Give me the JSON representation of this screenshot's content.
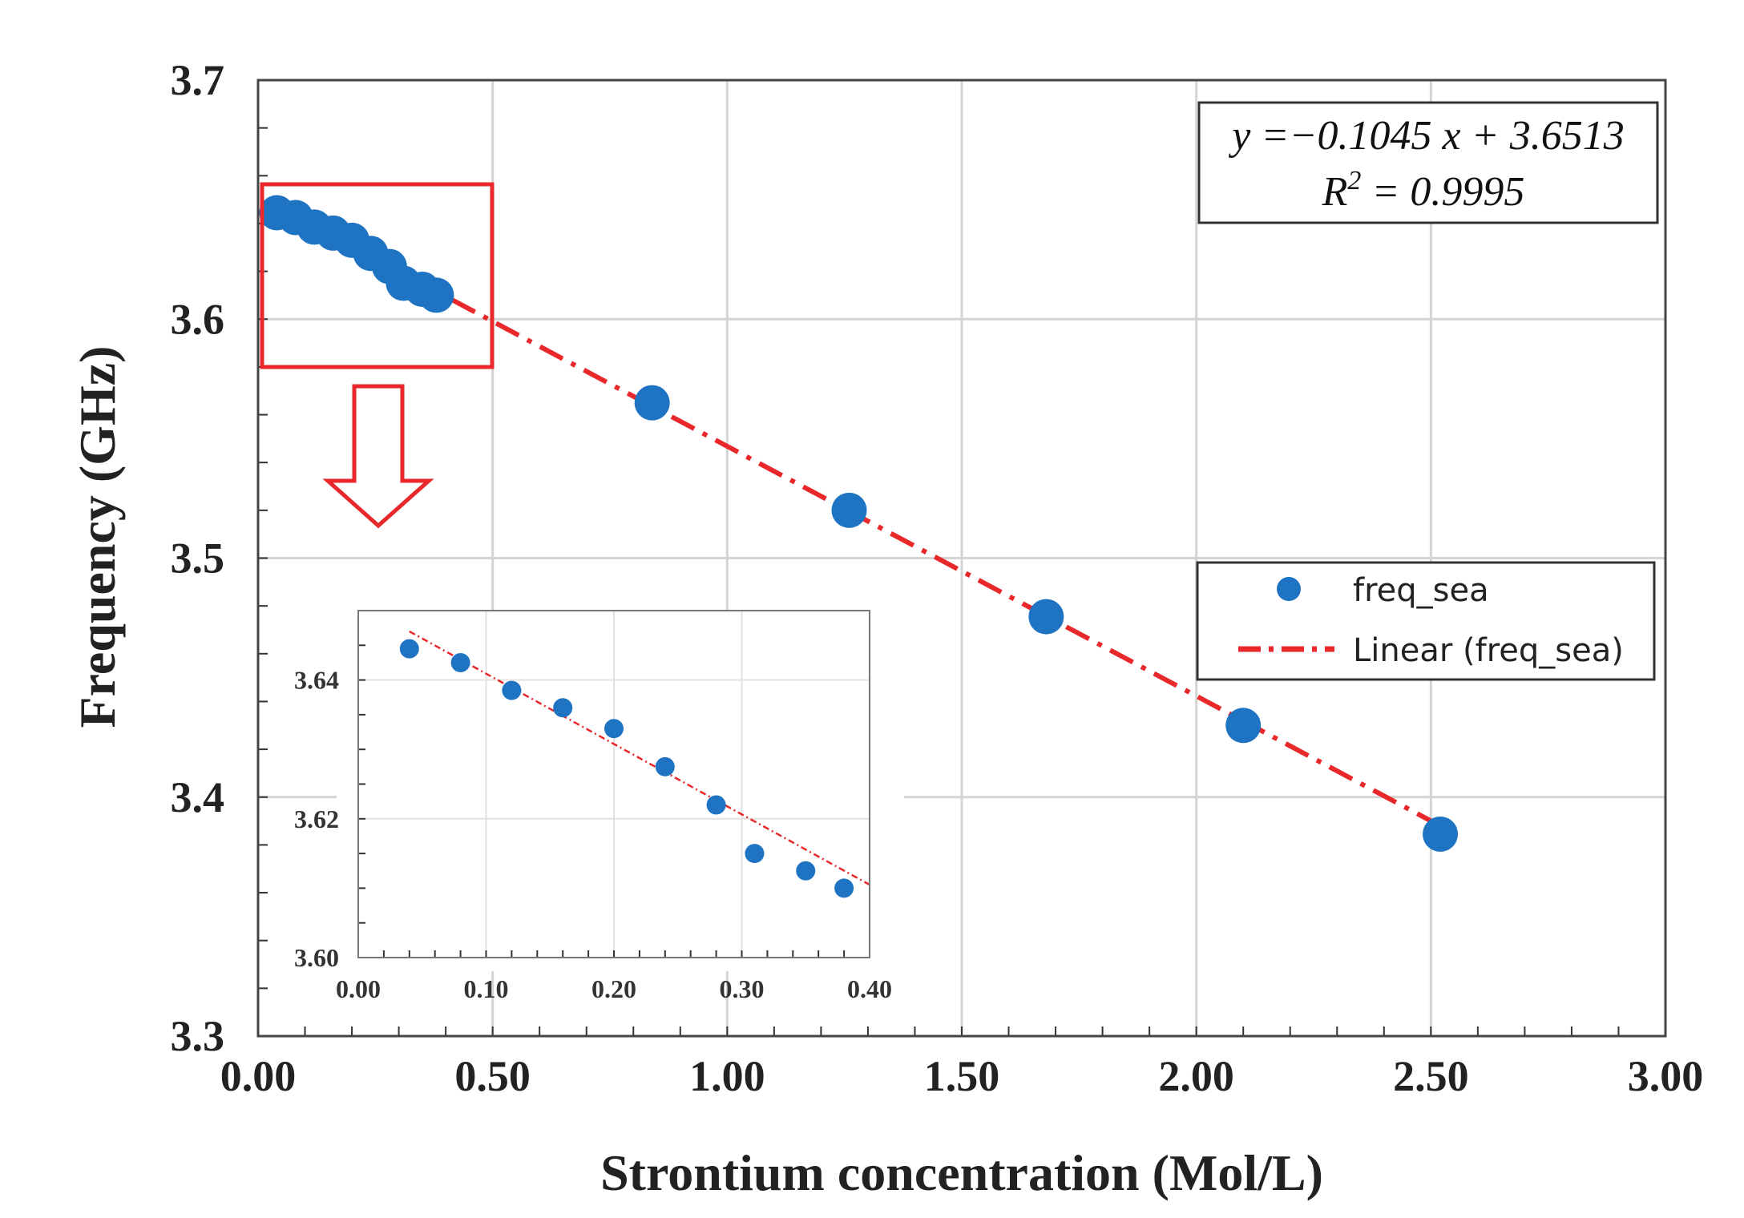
{
  "chart_data": [
    {
      "type": "scatter",
      "name": "main",
      "xlabel": "Strontium concentration (Mol/L)",
      "ylabel": "Frequency (GHz)",
      "xlim": [
        0,
        3.0
      ],
      "ylim": [
        3.3,
        3.7
      ],
      "x_ticks": [
        "0.00",
        "0.50",
        "1.00",
        "1.50",
        "2.00",
        "2.50",
        "3.00"
      ],
      "y_ticks": [
        "3.3",
        "3.4",
        "3.5",
        "3.6",
        "3.7"
      ],
      "grid": true,
      "series": [
        {
          "name": "freq_sea",
          "color": "#1f73c3",
          "x": [
            0.04,
            0.08,
            0.12,
            0.16,
            0.2,
            0.24,
            0.28,
            0.31,
            0.35,
            0.38,
            0.84,
            1.26,
            1.68,
            2.1,
            2.52
          ],
          "y": [
            3.6445,
            3.6425,
            3.6385,
            3.636,
            3.633,
            3.6275,
            3.622,
            3.615,
            3.6125,
            3.61,
            3.565,
            3.52,
            3.4755,
            3.43,
            3.3845
          ]
        }
      ],
      "trendline": {
        "name": "Linear (freq_sea)",
        "color": "#e8282a",
        "slope": -0.1045,
        "intercept": 3.6513,
        "x_range": [
          0.04,
          2.52
        ]
      },
      "equation_line1": "y =−0.1045 x + 3.6513",
      "equation_r2_label": "R",
      "equation_r2_sup": "2",
      "equation_r2_value": " = 0.9995",
      "legend": [
        "freq_sea",
        "Linear (freq_sea)"
      ],
      "legend_position": "right"
    },
    {
      "type": "scatter",
      "name": "inset",
      "xlim": [
        0,
        0.4
      ],
      "ylim": [
        3.6,
        3.65
      ],
      "x_ticks": [
        "0.00",
        "0.10",
        "0.20",
        "0.30",
        "0.40"
      ],
      "y_ticks": [
        "3.60",
        "3.62",
        "3.64"
      ],
      "grid": true,
      "series": [
        {
          "name": "freq_sea",
          "color": "#1f73c3",
          "x": [
            0.04,
            0.08,
            0.12,
            0.16,
            0.2,
            0.24,
            0.28,
            0.31,
            0.35,
            0.38
          ],
          "y": [
            3.6445,
            3.6425,
            3.6385,
            3.636,
            3.633,
            3.6275,
            3.622,
            3.615,
            3.6125,
            3.61
          ]
        }
      ],
      "trendline": {
        "color": "#e8282a",
        "x": [
          0.04,
          0.4
        ],
        "y": [
          3.647,
          3.6105
        ]
      }
    }
  ]
}
